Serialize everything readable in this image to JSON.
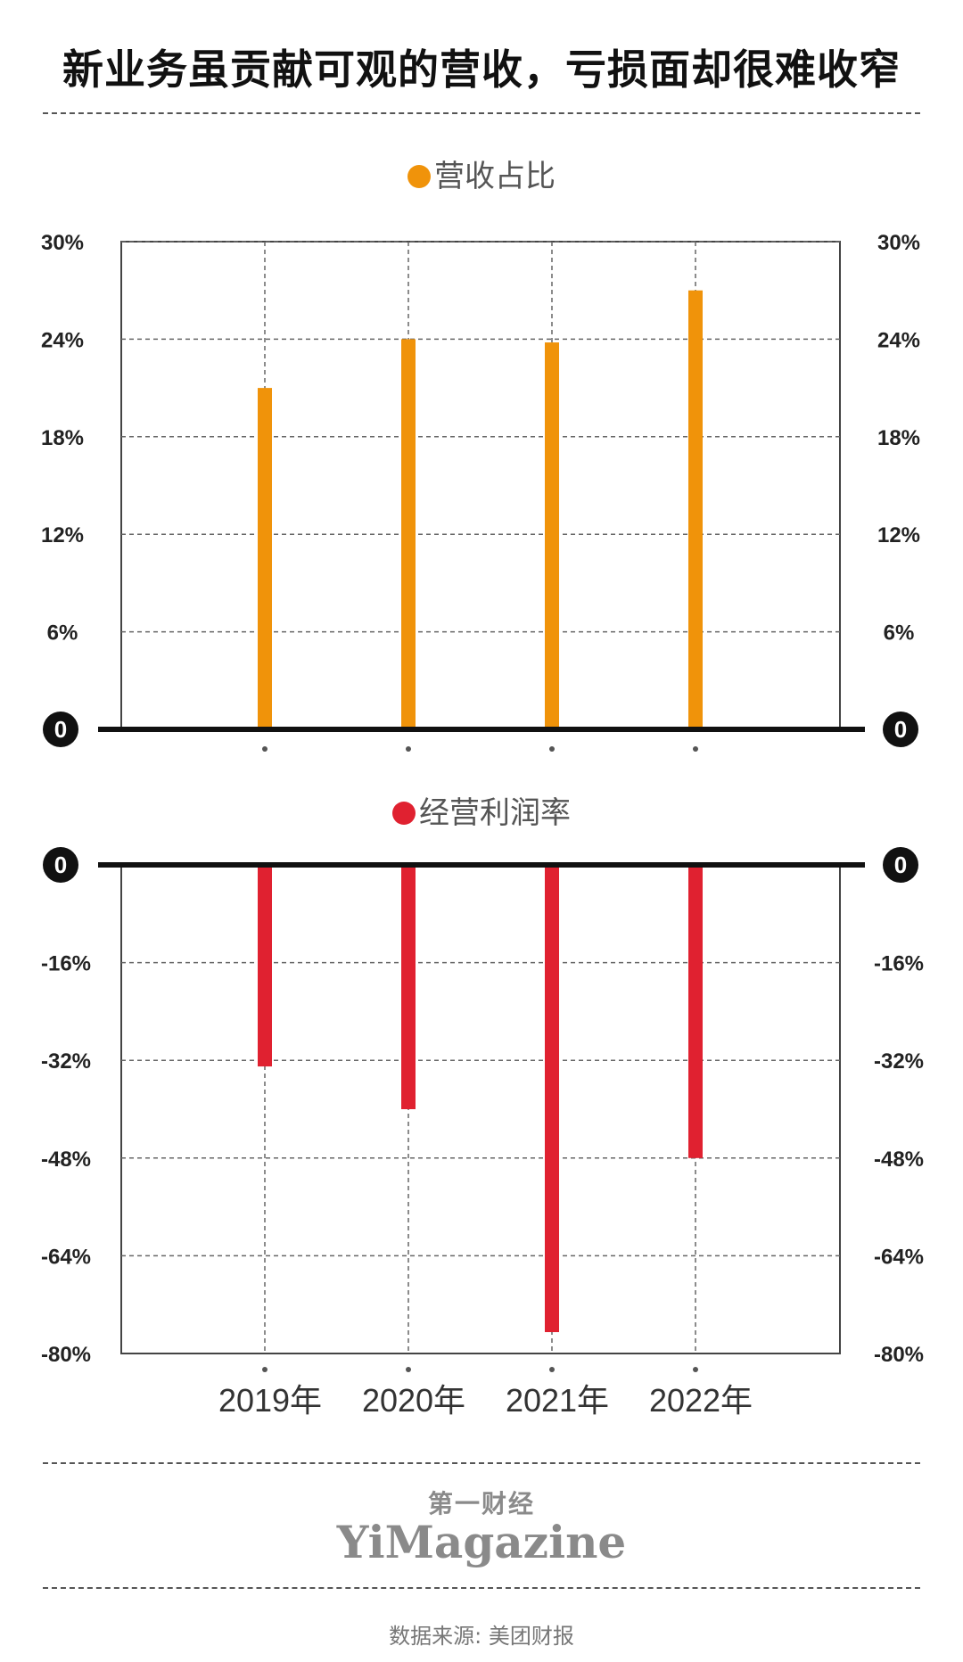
{
  "title": "新业务虽贡献可观的营收，亏损面却很难收窄",
  "brand": {
    "cn": "第一财经",
    "en": "YiMagazine"
  },
  "source": "数据来源: 美团财报",
  "colors": {
    "revenue": "#F0930A",
    "margin": "#E02130",
    "axis": "#111111",
    "grid": "#666666"
  },
  "chart_data": [
    {
      "type": "bar",
      "legend": "营收占比",
      "categories": [
        "2019年",
        "2020年",
        "2021年",
        "2022年"
      ],
      "values": [
        21,
        24,
        23.8,
        27
      ],
      "unit": "%",
      "ylim": [
        0,
        30
      ],
      "yticks": [
        0,
        6,
        12,
        18,
        24,
        30
      ],
      "ytick_labels": [
        "0",
        "6%",
        "12%",
        "18%",
        "24%",
        "30%"
      ],
      "grid": true,
      "legend_position": "top-center"
    },
    {
      "type": "bar",
      "legend": "经营利润率",
      "categories": [
        "2019年",
        "2020年",
        "2021年",
        "2022年"
      ],
      "values": [
        -33,
        -40,
        -76.5,
        -48
      ],
      "unit": "%",
      "ylim": [
        -80,
        0
      ],
      "yticks": [
        0,
        -16,
        -32,
        -48,
        -64,
        -80
      ],
      "ytick_labels": [
        "0",
        "-16%",
        "-32%",
        "-48%",
        "-64%",
        "-80%"
      ],
      "grid": true,
      "legend_position": "top-center"
    }
  ]
}
